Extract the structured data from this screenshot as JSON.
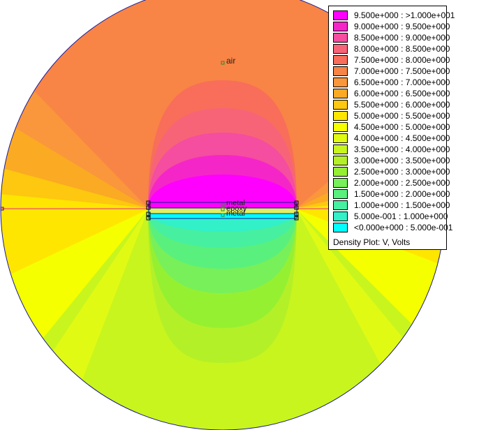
{
  "plot": {
    "regions": {
      "air": "air",
      "metal_top": "metal",
      "epoxy": "epoxy",
      "metal_bottom": "metal"
    }
  },
  "legend": {
    "title": "Density Plot: V, Volts",
    "items": [
      {
        "label": "9.500e+000 : >1.000e+001",
        "color": "#ff00ff"
      },
      {
        "label": "9.000e+000 : 9.500e+000",
        "color": "#f526c8"
      },
      {
        "label": "8.500e+000 : 9.000e+000",
        "color": "#f54da0"
      },
      {
        "label": "8.000e+000 : 8.500e+000",
        "color": "#f76478"
      },
      {
        "label": "7.500e+000 : 8.000e+000",
        "color": "#f86e5a"
      },
      {
        "label": "7.000e+000 : 7.500e+000",
        "color": "#f88446"
      },
      {
        "label": "6.500e+000 : 7.000e+000",
        "color": "#fa963c"
      },
      {
        "label": "6.000e+000 : 6.500e+000",
        "color": "#fbaa23"
      },
      {
        "label": "5.500e+000 : 6.000e+000",
        "color": "#fdc80f"
      },
      {
        "label": "5.000e+000 : 5.500e+000",
        "color": "#ffe600"
      },
      {
        "label": "4.500e+000 : 5.000e+000",
        "color": "#f5ff00"
      },
      {
        "label": "4.000e+000 : 4.500e+000",
        "color": "#e1fa14"
      },
      {
        "label": "3.500e+000 : 4.000e+000",
        "color": "#c8f51e"
      },
      {
        "label": "3.000e+000 : 3.500e+000",
        "color": "#b4f028"
      },
      {
        "label": "2.500e+000 : 3.000e+000",
        "color": "#96f032"
      },
      {
        "label": "2.000e+000 : 2.500e+000",
        "color": "#78f05a"
      },
      {
        "label": "1.500e+000 : 2.000e+000",
        "color": "#5af07d"
      },
      {
        "label": "1.000e+000 : 1.500e+000",
        "color": "#46f0a0"
      },
      {
        "label": "5.000e-001 : 1.000e+000",
        "color": "#32f0c8"
      },
      {
        "label": "<0.000e+000 : 5.000e-001",
        "color": "#00ffff"
      }
    ]
  }
}
